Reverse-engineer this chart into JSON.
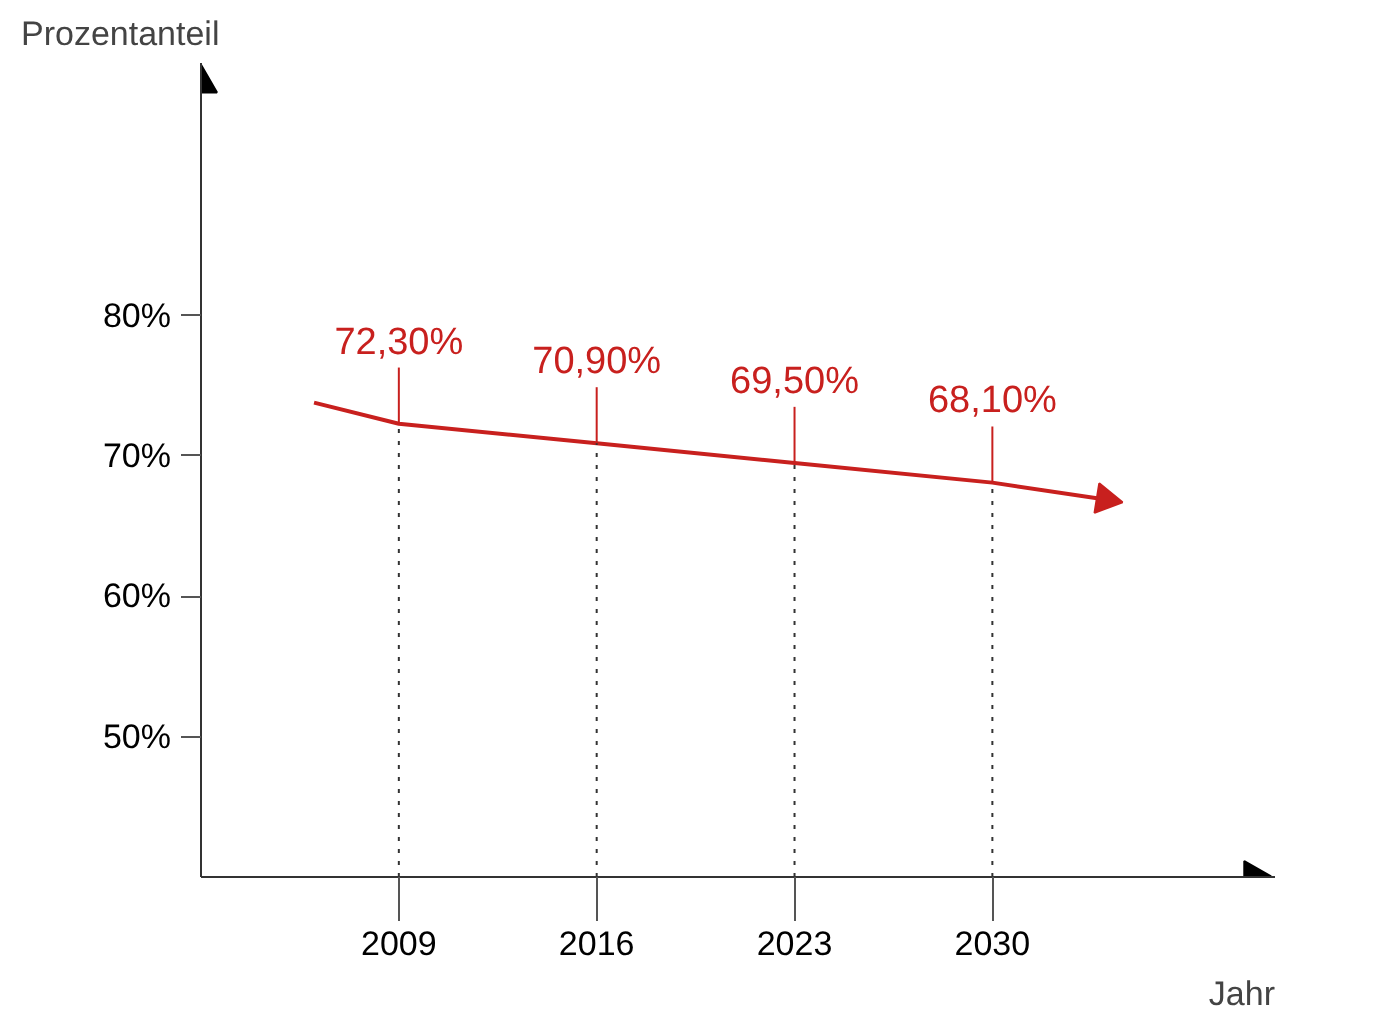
{
  "chart_data": {
    "type": "line",
    "xlabel": "Jahr",
    "ylabel": "Prozentanteil",
    "x": [
      2006,
      2009,
      2016,
      2023,
      2030,
      2034
    ],
    "series": [
      {
        "color": "#c8201e",
        "values": [
          73.8,
          72.3,
          70.9,
          69.5,
          68.1,
          66.9
        ],
        "value_labels": [
          null,
          "72,30%",
          "70,90%",
          "69,50%",
          "68,10%",
          null
        ]
      }
    ],
    "xlim": [
      2002,
      2040
    ],
    "ylim": [
      40,
      98
    ],
    "xticks": [
      2009,
      2016,
      2023,
      2030
    ],
    "yticks": [
      {
        "value": 50,
        "label": "50%"
      },
      {
        "value": 60,
        "label": "60%"
      },
      {
        "value": 70,
        "label": "70%"
      },
      {
        "value": 80,
        "label": "80%"
      }
    ],
    "ref_lines": [
      {
        "axis": "x",
        "value": 2009,
        "color": "#333333",
        "line_style": "dotted"
      },
      {
        "axis": "x",
        "value": 2016,
        "color": "#333333",
        "line_style": "dotted"
      },
      {
        "axis": "x",
        "value": 2023,
        "color": "#333333",
        "line_style": "dotted"
      },
      {
        "axis": "x",
        "value": 2030,
        "color": "#333333",
        "line_style": "dotted"
      }
    ],
    "grid": false,
    "marker": "none",
    "line_style": "solid"
  }
}
